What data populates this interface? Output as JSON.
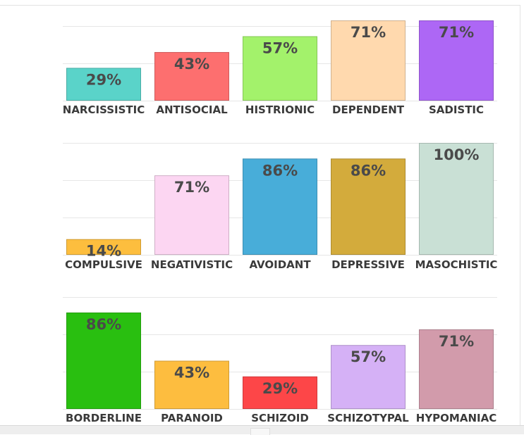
{
  "chart_data": [
    {
      "type": "bar",
      "categories": [
        "NARCISSISTIC",
        "ANTISOCIAL",
        "HISTRIONIC",
        "DEPENDENT",
        "SADISTIC"
      ],
      "values": [
        29,
        43,
        57,
        71,
        71
      ],
      "value_labels": [
        "29%",
        "43%",
        "57%",
        "71%",
        "71%"
      ],
      "colors": [
        "#5ad3c9",
        "#fd6f6f",
        "#a3f26b",
        "#ffd9ae",
        "#ad67f5"
      ],
      "ylim": [
        0,
        71
      ],
      "grid": true
    },
    {
      "type": "bar",
      "categories": [
        "COMPULSIVE",
        "NEGATIVISTIC",
        "AVOIDANT",
        "DEPRESSIVE",
        "MASOCHISTIC"
      ],
      "values": [
        14,
        71,
        86,
        86,
        100
      ],
      "value_labels": [
        "14%",
        "71%",
        "86%",
        "86%",
        "100%"
      ],
      "colors": [
        "#fdbe3e",
        "#fcd6f2",
        "#48add9",
        "#d3ab3c",
        "#c9e0d5"
      ],
      "ylim": [
        0,
        100
      ],
      "grid": true
    },
    {
      "type": "bar",
      "categories": [
        "BORDERLINE",
        "PARANOID",
        "SCHIZOID",
        "SCHIZOTYPAL",
        "HYPOMANIAC"
      ],
      "values": [
        86,
        43,
        29,
        57,
        71
      ],
      "value_labels": [
        "86%",
        "43%",
        "29%",
        "57%",
        "71%"
      ],
      "colors": [
        "#29bf10",
        "#fdbd3f",
        "#fd4648",
        "#d5b1f6",
        "#d29bab"
      ],
      "ylim": [
        0,
        86
      ],
      "grid": true
    }
  ]
}
